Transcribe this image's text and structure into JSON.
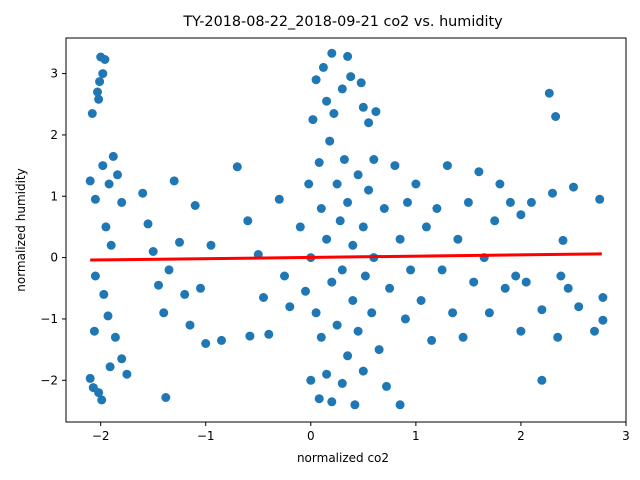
{
  "chart_data": {
    "type": "scatter",
    "title": "TY-2018-08-22_2018-09-21 co2 vs. humidity",
    "xlabel": "normalized co2",
    "ylabel": "normalized humidity",
    "xlim": [
      -2.33,
      3.0
    ],
    "ylim": [
      -2.68,
      3.58
    ],
    "xticks": [
      -2,
      -1,
      0,
      1,
      2,
      3
    ],
    "yticks": [
      -2,
      -1,
      0,
      1,
      2,
      3
    ],
    "grid": false,
    "legend": "none",
    "point_color": "#1f77b4",
    "fit_color": "#ff0000",
    "series": [
      {
        "kind": "points",
        "points": [
          [
            -2.08,
            2.35
          ],
          [
            -2.03,
            2.7
          ],
          [
            -2.02,
            2.58
          ],
          [
            -2.0,
            3.27
          ],
          [
            -1.98,
            3.0
          ],
          [
            -1.96,
            3.23
          ],
          [
            -2.01,
            2.87
          ],
          [
            -2.1,
            1.25
          ],
          [
            -2.05,
            0.95
          ],
          [
            -1.98,
            1.5
          ],
          [
            -1.92,
            1.2
          ],
          [
            -1.88,
            1.65
          ],
          [
            -1.84,
            1.35
          ],
          [
            -1.8,
            0.9
          ],
          [
            -1.95,
            0.5
          ],
          [
            -1.9,
            0.2
          ],
          [
            -2.05,
            -0.3
          ],
          [
            -1.97,
            -0.6
          ],
          [
            -1.93,
            -0.95
          ],
          [
            -1.86,
            -1.3
          ],
          [
            -1.8,
            -1.65
          ],
          [
            -1.75,
            -1.9
          ],
          [
            -2.06,
            -1.2
          ],
          [
            -2.1,
            -1.97
          ],
          [
            -2.07,
            -2.12
          ],
          [
            -2.02,
            -2.2
          ],
          [
            -1.99,
            -2.32
          ],
          [
            -1.91,
            -1.78
          ],
          [
            -1.6,
            1.05
          ],
          [
            -1.55,
            0.55
          ],
          [
            -1.5,
            0.1
          ],
          [
            -1.45,
            -0.45
          ],
          [
            -1.4,
            -0.9
          ],
          [
            -1.38,
            -2.28
          ],
          [
            -1.35,
            -0.2
          ],
          [
            -1.3,
            1.25
          ],
          [
            -1.25,
            0.25
          ],
          [
            -1.2,
            -0.6
          ],
          [
            -1.15,
            -1.1
          ],
          [
            -1.1,
            0.85
          ],
          [
            -1.05,
            -0.5
          ],
          [
            -1.0,
            -1.4
          ],
          [
            -0.95,
            0.2
          ],
          [
            -0.85,
            -1.35
          ],
          [
            -0.7,
            1.48
          ],
          [
            -0.6,
            0.6
          ],
          [
            -0.58,
            -1.28
          ],
          [
            -0.5,
            0.05
          ],
          [
            -0.45,
            -0.65
          ],
          [
            -0.4,
            -1.25
          ],
          [
            -0.3,
            0.95
          ],
          [
            -0.25,
            -0.3
          ],
          [
            -0.2,
            -0.8
          ],
          [
            -0.1,
            0.5
          ],
          [
            -0.05,
            -0.55
          ],
          [
            -0.02,
            1.2
          ],
          [
            0.0,
            0.0
          ],
          [
            0.0,
            -2.0
          ],
          [
            0.02,
            2.25
          ],
          [
            0.05,
            2.9
          ],
          [
            0.05,
            -0.9
          ],
          [
            0.08,
            1.55
          ],
          [
            0.08,
            -2.3
          ],
          [
            0.1,
            0.8
          ],
          [
            0.1,
            -1.3
          ],
          [
            0.12,
            3.1
          ],
          [
            0.15,
            2.55
          ],
          [
            0.15,
            -1.9
          ],
          [
            0.15,
            0.3
          ],
          [
            0.18,
            1.9
          ],
          [
            0.2,
            -0.4
          ],
          [
            0.2,
            -2.35
          ],
          [
            0.2,
            3.33
          ],
          [
            0.22,
            2.35
          ],
          [
            0.25,
            1.2
          ],
          [
            0.25,
            -1.1
          ],
          [
            0.28,
            0.6
          ],
          [
            0.3,
            2.75
          ],
          [
            0.3,
            -2.05
          ],
          [
            0.3,
            -0.2
          ],
          [
            0.32,
            1.6
          ],
          [
            0.35,
            -1.6
          ],
          [
            0.35,
            0.9
          ],
          [
            0.35,
            3.28
          ],
          [
            0.38,
            2.95
          ],
          [
            0.4,
            -0.7
          ],
          [
            0.4,
            0.2
          ],
          [
            0.42,
            -2.4
          ],
          [
            0.45,
            1.35
          ],
          [
            0.45,
            -1.2
          ],
          [
            0.48,
            2.85
          ],
          [
            0.5,
            0.5
          ],
          [
            0.5,
            -1.85
          ],
          [
            0.5,
            2.45
          ],
          [
            0.52,
            -0.3
          ],
          [
            0.55,
            1.1
          ],
          [
            0.55,
            2.2
          ],
          [
            0.58,
            -0.9
          ],
          [
            0.6,
            0.0
          ],
          [
            0.6,
            1.6
          ],
          [
            0.62,
            2.38
          ],
          [
            0.65,
            -1.5
          ],
          [
            0.7,
            0.8
          ],
          [
            0.72,
            -2.1
          ],
          [
            0.75,
            -0.5
          ],
          [
            0.8,
            1.5
          ],
          [
            0.85,
            0.3
          ],
          [
            0.85,
            -2.4
          ],
          [
            0.9,
            -1.0
          ],
          [
            0.92,
            0.9
          ],
          [
            0.95,
            -0.2
          ],
          [
            1.0,
            1.2
          ],
          [
            1.05,
            -0.7
          ],
          [
            1.1,
            0.5
          ],
          [
            1.15,
            -1.35
          ],
          [
            1.2,
            0.8
          ],
          [
            1.25,
            -0.2
          ],
          [
            1.3,
            1.5
          ],
          [
            1.35,
            -0.9
          ],
          [
            1.4,
            0.3
          ],
          [
            1.45,
            -1.3
          ],
          [
            1.5,
            0.9
          ],
          [
            1.55,
            -0.4
          ],
          [
            1.6,
            1.4
          ],
          [
            1.65,
            0.0
          ],
          [
            1.7,
            -0.9
          ],
          [
            1.75,
            0.6
          ],
          [
            1.8,
            1.2
          ],
          [
            1.85,
            -0.5
          ],
          [
            1.9,
            0.9
          ],
          [
            1.95,
            -0.3
          ],
          [
            2.0,
            0.7
          ],
          [
            2.05,
            -0.4
          ],
          [
            2.1,
            0.9
          ],
          [
            2.0,
            -1.2
          ],
          [
            2.2,
            -0.85
          ],
          [
            2.2,
            -2.0
          ],
          [
            2.27,
            2.68
          ],
          [
            2.3,
            1.05
          ],
          [
            2.33,
            2.3
          ],
          [
            2.35,
            -1.3
          ],
          [
            2.38,
            -0.3
          ],
          [
            2.4,
            0.28
          ],
          [
            2.45,
            -0.5
          ],
          [
            2.5,
            1.15
          ],
          [
            2.55,
            -0.8
          ],
          [
            2.7,
            -1.2
          ],
          [
            2.75,
            0.95
          ],
          [
            2.78,
            -0.65
          ],
          [
            2.78,
            -1.02
          ]
        ]
      },
      {
        "kind": "fit_line",
        "x": [
          -2.1,
          2.77
        ],
        "y": [
          -0.04,
          0.06
        ]
      }
    ]
  }
}
